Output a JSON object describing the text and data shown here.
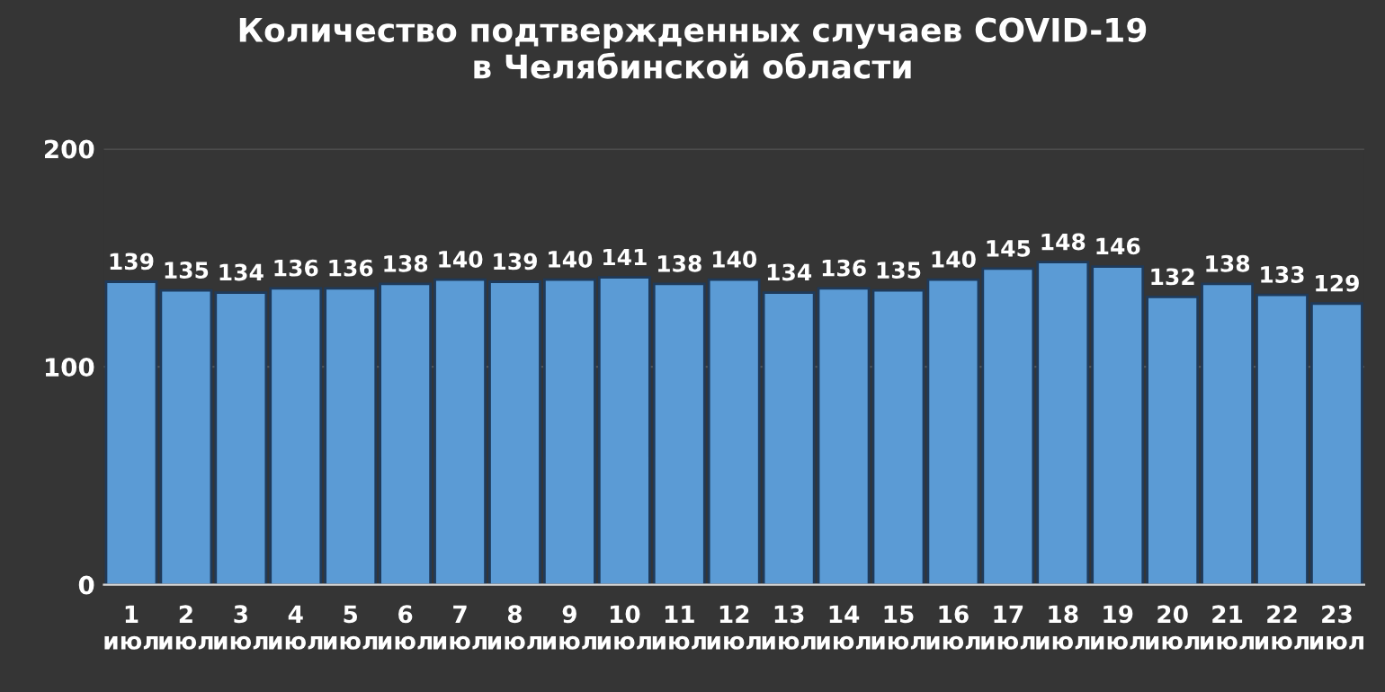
{
  "chart_data": {
    "type": "bar",
    "title": "Количество подтвержденных случаев COVID-19\nв Челябинской области",
    "categories": [
      "1\nиюл",
      "2\nиюл",
      "3\nиюл",
      "4\nиюл",
      "5\nиюл",
      "6\nиюл",
      "7\nиюл",
      "8\nиюл",
      "9\nиюл",
      "10\nиюл",
      "11\nиюл",
      "12\nиюл",
      "13\nиюл",
      "14\nиюл",
      "15\nиюл",
      "16\nиюл",
      "17\nиюл",
      "18\nиюл",
      "19\nиюл",
      "20\nиюл",
      "21\nиюл",
      "22\nиюл",
      "23\nиюл"
    ],
    "values": [
      139,
      135,
      134,
      136,
      136,
      138,
      140,
      139,
      140,
      141,
      138,
      140,
      134,
      136,
      135,
      140,
      145,
      148,
      146,
      132,
      138,
      133,
      129
    ],
    "color": "#5b9bd5",
    "ylim": [
      0,
      200
    ],
    "yticks": [
      0,
      100,
      200
    ],
    "grid": "y",
    "data_labels": true
  }
}
